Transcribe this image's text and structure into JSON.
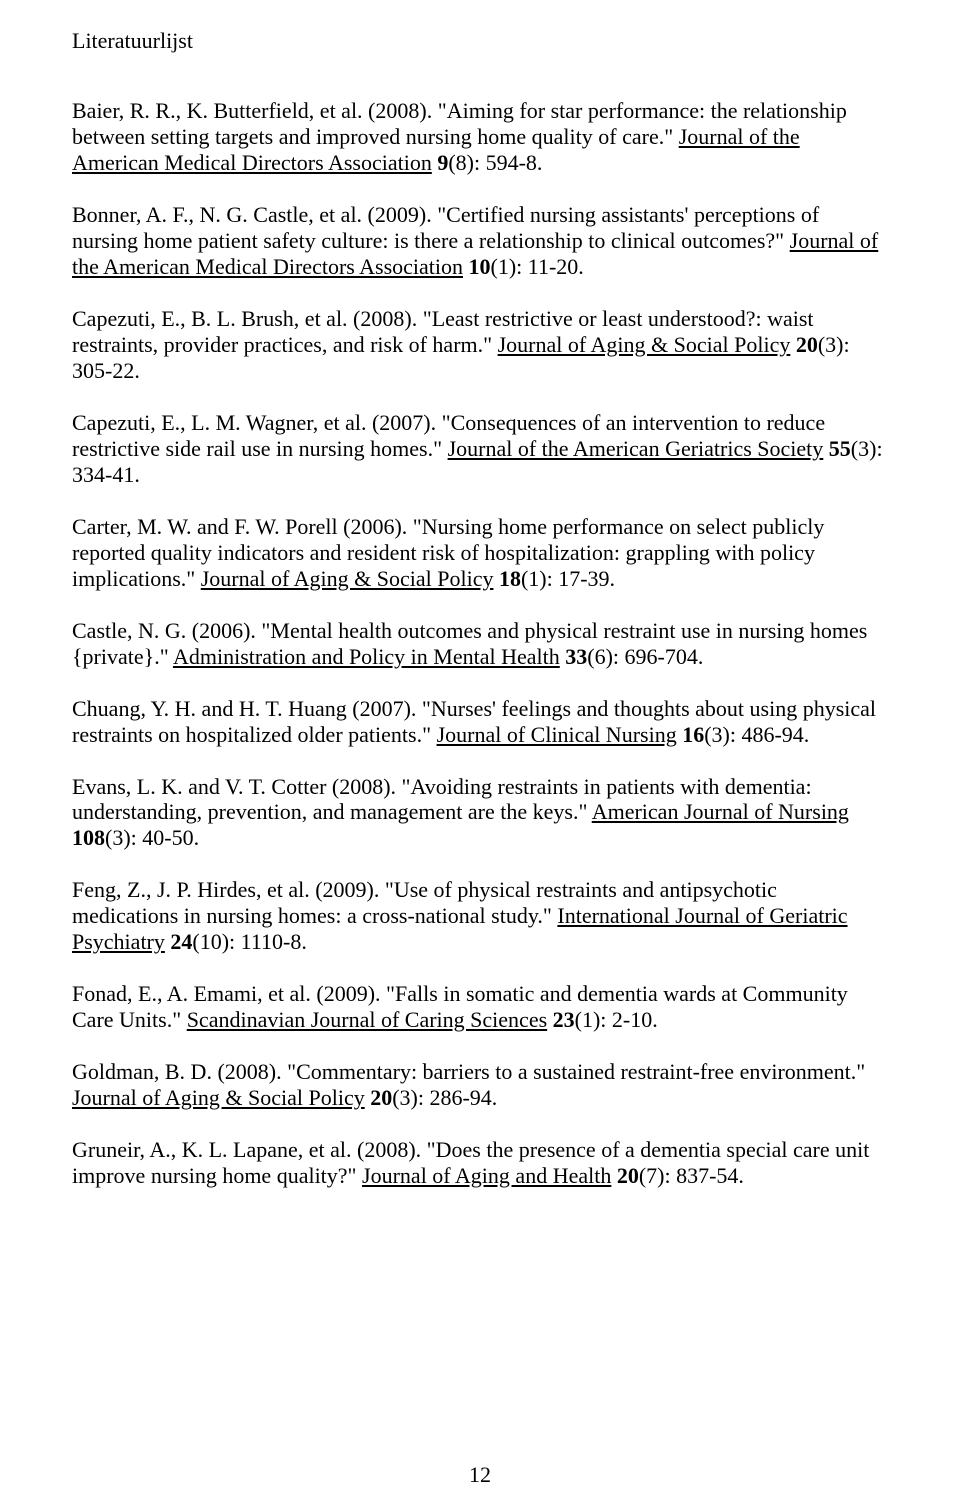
{
  "title": "Literatuurlijst",
  "pageNumber": "12",
  "refs": [
    {
      "pre": "Baier, R. R., K. Butterfield, et al. (2008). \"Aiming for star performance: the relationship between setting targets and improved nursing home quality of care.\" ",
      "journal": "Journal of the American Medical Directors Association",
      "vol": " 9",
      "post": "(8): 594-8."
    },
    {
      "pre": "Bonner, A. F., N. G. Castle, et al. (2009). \"Certified nursing assistants' perceptions of nursing home patient safety culture: is there a relationship to clinical outcomes?\" ",
      "journal": "Journal of the American Medical Directors Association",
      "vol": " 10",
      "post": "(1): 11-20."
    },
    {
      "pre": "Capezuti, E., B. L. Brush, et al. (2008). \"Least restrictive or least understood?: waist restraints, provider practices, and risk of harm.\" ",
      "journal": "Journal of Aging & Social Policy",
      "vol": " 20",
      "post": "(3): 305-22."
    },
    {
      "pre": "Capezuti, E., L. M. Wagner, et al. (2007). \"Consequences of an intervention to reduce restrictive side rail use in nursing homes.\" ",
      "journal": "Journal of the American Geriatrics Society",
      "vol": " 55",
      "post": "(3): 334-41."
    },
    {
      "pre": "Carter, M. W. and F. W. Porell (2006). \"Nursing home performance on select publicly reported quality indicators and resident risk of hospitalization: grappling with policy implications.\" ",
      "journal": "Journal of Aging & Social Policy",
      "vol": " 18",
      "post": "(1): 17-39."
    },
    {
      "pre": "Castle, N. G. (2006). \"Mental health outcomes and physical restraint use in nursing homes {private}.\" ",
      "journal": "Administration and Policy in Mental Health",
      "vol": " 33",
      "post": "(6): 696-704."
    },
    {
      "pre": "Chuang, Y. H. and H. T. Huang (2007). \"Nurses' feelings and thoughts about using physical restraints on hospitalized older patients.\" ",
      "journal": "Journal of Clinical Nursing",
      "vol": " 16",
      "post": "(3): 486-94."
    },
    {
      "pre": "Evans, L. K. and V. T. Cotter (2008). \"Avoiding restraints in patients with dementia: understanding, prevention, and management are the keys.\" ",
      "journal": "American Journal of Nursing",
      "vol": " 108",
      "post": "(3): 40-50."
    },
    {
      "pre": "Feng, Z., J. P. Hirdes, et al. (2009). \"Use of physical restraints and antipsychotic medications in nursing homes: a cross-national study.\" ",
      "journal": "International Journal of Geriatric Psychiatry",
      "vol": " 24",
      "post": "(10): 1110-8."
    },
    {
      "pre": "Fonad, E., A. Emami, et al. (2009). \"Falls in somatic and dementia wards at Community Care Units.\" ",
      "journal": "Scandinavian Journal of Caring Sciences",
      "vol": " 23",
      "post": "(1): 2-10."
    },
    {
      "pre": "Goldman, B. D. (2008). \"Commentary: barriers to a sustained restraint-free environment.\" ",
      "journal": "Journal of Aging & Social Policy",
      "vol": " 20",
      "post": "(3): 286-94."
    },
    {
      "pre": "Gruneir, A., K. L. Lapane, et al. (2008). \"Does the presence of a dementia special care unit improve nursing home quality?\" ",
      "journal": "Journal of Aging and Health",
      "vol": " 20",
      "post": "(7): 837-54."
    }
  ]
}
